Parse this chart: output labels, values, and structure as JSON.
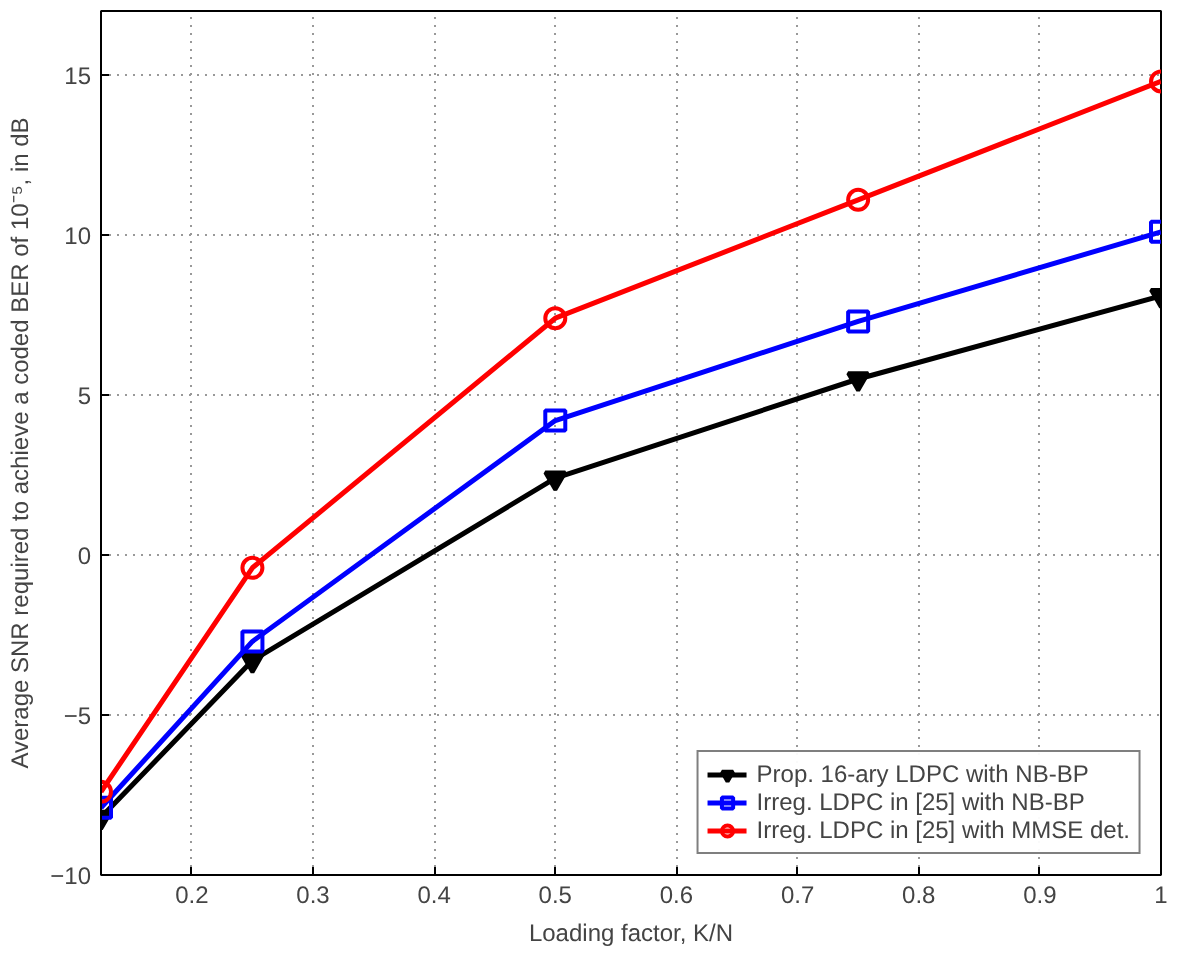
{
  "chart_data": {
    "type": "line",
    "xlabel": "Loading factor, K/N",
    "ylabel": "Average SNR required to achieve a coded BER of 10⁻⁵, in dB",
    "x": [
      0.125,
      0.25,
      0.5,
      0.75,
      1
    ],
    "series": [
      {
        "name": "Prop. 16-ary LDPC with NB-BP",
        "color": "#000000",
        "marker": "triangle",
        "values": [
          -8.2,
          -3.3,
          2.4,
          5.5,
          8.1
        ]
      },
      {
        "name": "Irreg. LDPC in [25] with NB-BP",
        "color": "#0000ff",
        "marker": "square",
        "values": [
          -7.9,
          -2.7,
          4.2,
          7.3,
          10.1
        ]
      },
      {
        "name": "Irreg. LDPC in [25] with MMSE det.",
        "color": "#ff0000",
        "marker": "circle",
        "values": [
          -7.4,
          -0.4,
          7.4,
          11.1,
          14.8
        ]
      }
    ],
    "xlim": [
      0.125,
      1
    ],
    "ylim": [
      -10,
      17
    ],
    "xticks": [
      0.2,
      0.3,
      0.4,
      0.5,
      0.6,
      0.7,
      0.8,
      0.9,
      1
    ],
    "yticks": [
      -10,
      -5,
      0,
      5,
      10,
      15
    ],
    "grid": true,
    "legend": "bottom right",
    "line_style": "solid"
  }
}
